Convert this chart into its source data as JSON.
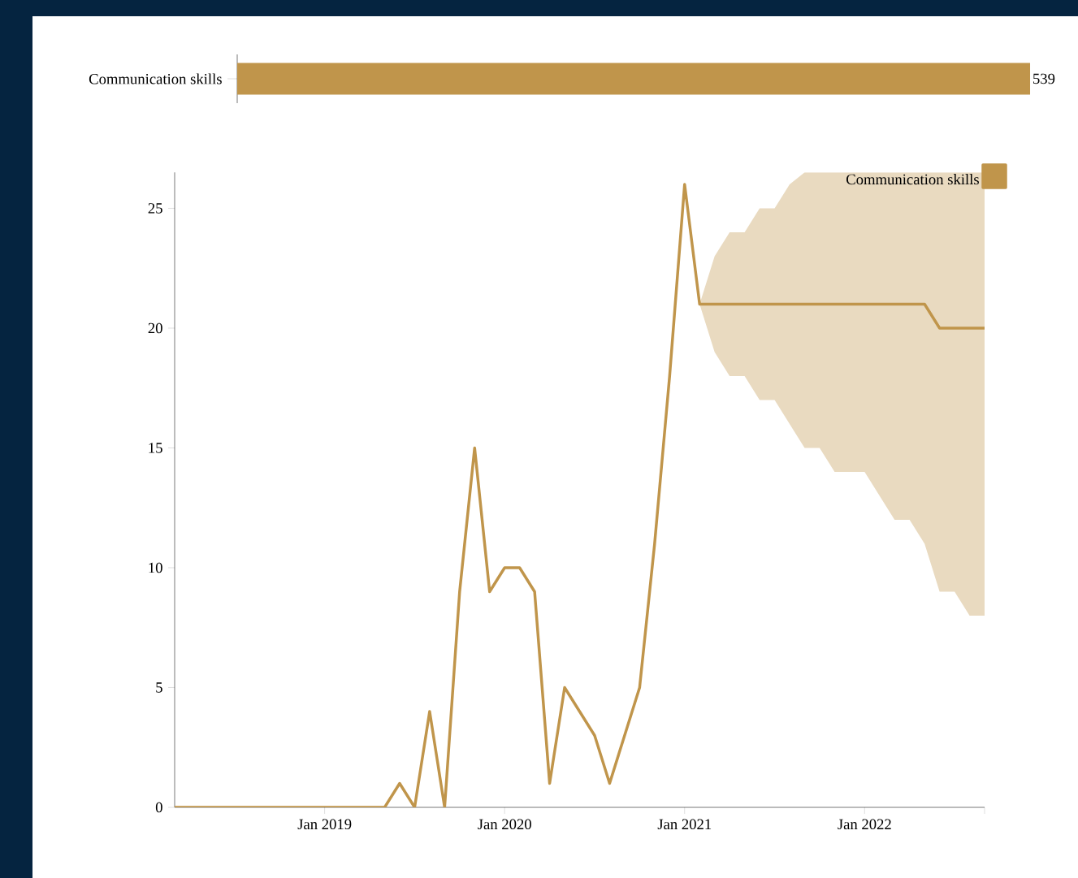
{
  "chart_data": [
    {
      "type": "bar",
      "orientation": "horizontal",
      "categories": [
        "Communication skills"
      ],
      "values": [
        539
      ],
      "color": "#c0954b",
      "data_labels": true
    },
    {
      "type": "line",
      "x": [
        "2018-03",
        "2018-04",
        "2018-05",
        "2018-06",
        "2018-07",
        "2018-08",
        "2018-09",
        "2018-10",
        "2018-11",
        "2018-12",
        "2019-01",
        "2019-02",
        "2019-03",
        "2019-04",
        "2019-05",
        "2019-06",
        "2019-07",
        "2019-08",
        "2019-09",
        "2019-10",
        "2019-11",
        "2019-12",
        "2020-01",
        "2020-02",
        "2020-03",
        "2020-04",
        "2020-05",
        "2020-06",
        "2020-07",
        "2020-08",
        "2020-09",
        "2020-10",
        "2020-11",
        "2020-12",
        "2021-01",
        "2021-02",
        "2021-03",
        "2021-04",
        "2021-05",
        "2021-06",
        "2021-07",
        "2021-08",
        "2021-09",
        "2021-10",
        "2021-11",
        "2021-12",
        "2022-01",
        "2022-02",
        "2022-03",
        "2022-04",
        "2022-05",
        "2022-06",
        "2022-07",
        "2022-08",
        "2022-09"
      ],
      "series": [
        {
          "name": "Communication skills",
          "color": "#c0954b",
          "values": [
            0,
            0,
            0,
            0,
            0,
            0,
            0,
            0,
            0,
            0,
            0,
            0,
            0,
            0,
            0,
            1,
            0,
            4,
            0,
            9,
            15,
            9,
            10,
            10,
            9,
            1,
            5,
            4,
            3,
            1,
            3,
            5,
            11,
            18,
            26,
            21,
            21,
            21,
            21,
            21,
            21,
            21,
            21,
            21,
            21,
            21,
            21,
            21,
            21,
            21,
            21,
            20,
            20,
            20,
            20
          ],
          "lower": [
            null,
            null,
            null,
            null,
            null,
            null,
            null,
            null,
            null,
            null,
            null,
            null,
            null,
            null,
            null,
            null,
            null,
            null,
            null,
            null,
            null,
            null,
            null,
            null,
            null,
            null,
            null,
            null,
            null,
            null,
            null,
            null,
            null,
            null,
            null,
            21,
            19,
            18,
            18,
            17,
            17,
            16,
            15,
            15,
            14,
            14,
            14,
            13,
            12,
            12,
            11,
            9,
            9,
            8,
            8
          ],
          "upper": [
            null,
            null,
            null,
            null,
            null,
            null,
            null,
            null,
            null,
            null,
            null,
            null,
            null,
            null,
            null,
            null,
            null,
            null,
            null,
            null,
            null,
            null,
            null,
            null,
            null,
            null,
            null,
            null,
            null,
            null,
            null,
            null,
            null,
            null,
            null,
            21,
            23,
            24,
            24,
            25,
            25,
            26,
            26.5,
            26.5,
            26.5,
            26.5,
            26.5,
            26.5,
            26.5,
            26.5,
            26.5,
            26.5,
            26.5,
            26.5,
            26.5
          ]
        }
      ],
      "xlim": [
        "2018-03",
        "2022-09"
      ],
      "xticks": [
        {
          "value": "2019-01",
          "label": "Jan 2019"
        },
        {
          "value": "2020-01",
          "label": "Jan 2020"
        },
        {
          "value": "2021-01",
          "label": "Jan 2021"
        },
        {
          "value": "2022-01",
          "label": "Jan 2022"
        },
        {
          "value": "2022-09",
          "label": null
        }
      ],
      "ylim": [
        0,
        26.5
      ],
      "yticks": [
        0,
        5,
        10,
        15,
        20,
        25
      ],
      "legend": "top right"
    }
  ]
}
